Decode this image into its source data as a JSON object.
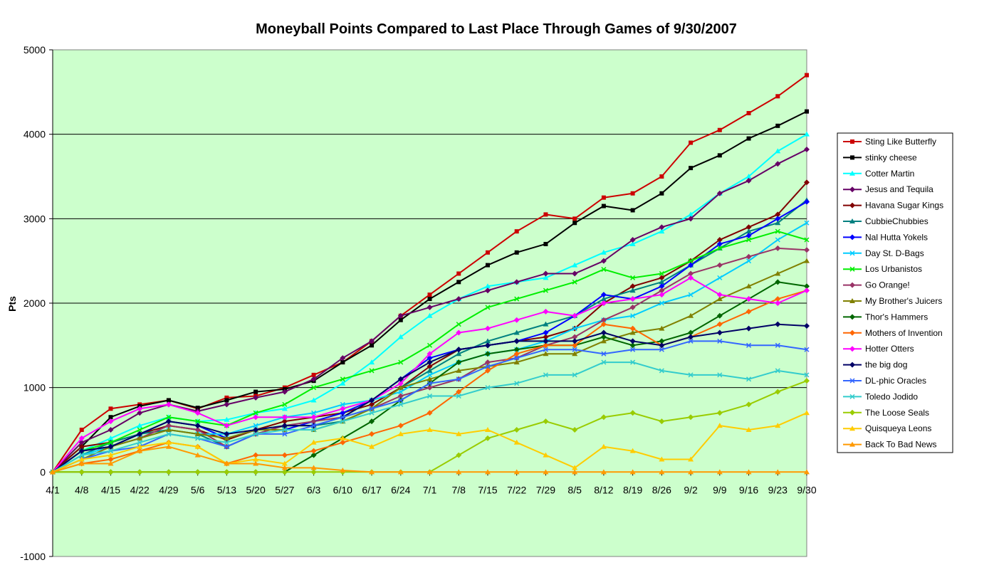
{
  "chart_data": {
    "type": "line",
    "title": "Moneyball Points Compared to Last Place Through Games of 9/30/2007",
    "xlabel": "",
    "ylabel": "Pts",
    "ylim": [
      -1000,
      5000
    ],
    "yticks": [
      -1000,
      0,
      1000,
      2000,
      3000,
      4000,
      5000
    ],
    "x_tick_labels": [
      "4/1",
      "4/8",
      "4/15",
      "4/22",
      "4/29",
      "5/6",
      "5/13",
      "5/20",
      "5/27",
      "6/3",
      "6/10",
      "6/17",
      "6/24",
      "7/1",
      "7/8",
      "7/15",
      "7/22",
      "7/29",
      "8/5",
      "8/12",
      "8/19",
      "8/26",
      "9/2",
      "9/9",
      "9/16",
      "9/23",
      "9/30"
    ],
    "plot_background": "#ccffcc",
    "grid": "horizontal",
    "legend_position": "right",
    "series": [
      {
        "name": "Sting Like Butterfly",
        "color": "#cc0000",
        "marker": "square",
        "values": [
          0,
          500,
          750,
          800,
          850,
          750,
          880,
          900,
          1000,
          1150,
          1300,
          1550,
          1850,
          2100,
          2350,
          2600,
          2850,
          3050,
          3000,
          3250,
          3300,
          3500,
          3900,
          4050,
          4250,
          4450,
          4700
        ]
      },
      {
        "name": "stinky cheese",
        "color": "#000000",
        "marker": "square",
        "values": [
          0,
          300,
          650,
          780,
          850,
          760,
          850,
          950,
          980,
          1080,
          1300,
          1500,
          1800,
          2050,
          2250,
          2450,
          2600,
          2700,
          2950,
          3150,
          3100,
          3300,
          3600,
          3750,
          3950,
          4100,
          4270
        ]
      },
      {
        "name": "Cotter Martin",
        "color": "#00ffff",
        "marker": "triangle",
        "values": [
          0,
          250,
          400,
          550,
          650,
          600,
          620,
          700,
          750,
          850,
          1050,
          1300,
          1600,
          1850,
          2050,
          2200,
          2250,
          2300,
          2450,
          2600,
          2700,
          2850,
          3050,
          3300,
          3500,
          3800,
          4000
        ]
      },
      {
        "name": "Jesus and Tequila",
        "color": "#660066",
        "marker": "diamond",
        "values": [
          0,
          350,
          500,
          700,
          800,
          720,
          800,
          880,
          950,
          1100,
          1350,
          1550,
          1850,
          1950,
          2050,
          2150,
          2250,
          2350,
          2350,
          2500,
          2750,
          2900,
          3000,
          3300,
          3450,
          3650,
          3820
        ]
      },
      {
        "name": "Havana Sugar Kings",
        "color": "#800000",
        "marker": "diamond",
        "values": [
          0,
          300,
          350,
          450,
          550,
          500,
          380,
          500,
          600,
          650,
          700,
          800,
          1000,
          1250,
          1450,
          1500,
          1550,
          1600,
          1700,
          2000,
          2200,
          2300,
          2500,
          2750,
          2900,
          3050,
          3430
        ]
      },
      {
        "name": "CubbieChubbies",
        "color": "#008080",
        "marker": "triangle",
        "values": [
          0,
          200,
          350,
          450,
          500,
          450,
          300,
          450,
          550,
          550,
          600,
          750,
          1000,
          1200,
          1400,
          1550,
          1650,
          1750,
          1850,
          2050,
          2150,
          2250,
          2450,
          2650,
          2850,
          2950,
          3220
        ]
      },
      {
        "name": "Nal Hutta Yokels",
        "color": "#0000ff",
        "marker": "diamond",
        "values": [
          0,
          250,
          300,
          450,
          600,
          550,
          400,
          500,
          500,
          600,
          700,
          850,
          1100,
          1350,
          1450,
          1500,
          1550,
          1650,
          1850,
          2100,
          2050,
          2200,
          2450,
          2700,
          2800,
          3000,
          3200
        ]
      },
      {
        "name": "Day St. D-Bags",
        "color": "#00ccff",
        "marker": "x",
        "values": [
          0,
          200,
          300,
          400,
          500,
          450,
          450,
          550,
          650,
          700,
          800,
          850,
          950,
          1150,
          1300,
          1400,
          1450,
          1550,
          1700,
          1800,
          1850,
          2000,
          2100,
          2300,
          2500,
          2750,
          2950
        ]
      },
      {
        "name": "Los Urbanistos",
        "color": "#00ee00",
        "marker": "x",
        "values": [
          0,
          250,
          350,
          500,
          650,
          600,
          550,
          700,
          800,
          1000,
          1100,
          1200,
          1300,
          1500,
          1750,
          1950,
          2050,
          2150,
          2250,
          2400,
          2300,
          2350,
          2500,
          2650,
          2750,
          2850,
          2750
        ]
      },
      {
        "name": "Go Orange!",
        "color": "#993366",
        "marker": "diamond",
        "values": [
          0,
          250,
          300,
          400,
          550,
          500,
          300,
          450,
          550,
          600,
          650,
          750,
          900,
          1000,
          1100,
          1300,
          1350,
          1500,
          1600,
          1800,
          1950,
          2150,
          2350,
          2450,
          2550,
          2650,
          2630
        ]
      },
      {
        "name": "My Brother's Juicers",
        "color": "#808000",
        "marker": "triangle",
        "values": [
          0,
          150,
          300,
          400,
          500,
          450,
          400,
          500,
          500,
          500,
          600,
          750,
          1000,
          1100,
          1200,
          1250,
          1300,
          1400,
          1400,
          1550,
          1650,
          1700,
          1850,
          2050,
          2200,
          2350,
          2500
        ]
      },
      {
        "name": "Thor's Hammers",
        "color": "#006600",
        "marker": "diamond",
        "values": [
          0,
          0,
          0,
          0,
          0,
          0,
          0,
          0,
          0,
          200,
          400,
          600,
          850,
          1050,
          1300,
          1400,
          1450,
          1500,
          1500,
          1600,
          1500,
          1550,
          1650,
          1850,
          2050,
          2250,
          2200
        ]
      },
      {
        "name": "Mothers of Invention",
        "color": "#ff6600",
        "marker": "diamond",
        "values": [
          0,
          100,
          150,
          250,
          350,
          300,
          100,
          200,
          200,
          250,
          350,
          450,
          550,
          700,
          950,
          1200,
          1400,
          1500,
          1500,
          1750,
          1700,
          1500,
          1600,
          1750,
          1900,
          2050,
          2150
        ]
      },
      {
        "name": "Hotter Otters",
        "color": "#ff00ff",
        "marker": "diamond",
        "values": [
          0,
          400,
          600,
          750,
          800,
          700,
          550,
          650,
          650,
          650,
          750,
          850,
          1050,
          1400,
          1650,
          1700,
          1800,
          1900,
          1850,
          2000,
          2050,
          2100,
          2300,
          2100,
          2050,
          2000,
          2150
        ]
      },
      {
        "name": "the big dog",
        "color": "#000066",
        "marker": "diamond",
        "values": [
          0,
          250,
          300,
          450,
          600,
          550,
          450,
          500,
          550,
          550,
          650,
          850,
          1100,
          1300,
          1450,
          1500,
          1550,
          1550,
          1550,
          1650,
          1550,
          1500,
          1600,
          1650,
          1700,
          1750,
          1730
        ]
      },
      {
        "name": "DL-phic Oracles",
        "color": "#3366ff",
        "marker": "x",
        "values": [
          0,
          150,
          250,
          300,
          450,
          400,
          300,
          450,
          450,
          550,
          650,
          750,
          850,
          1050,
          1100,
          1250,
          1350,
          1450,
          1450,
          1400,
          1450,
          1450,
          1550,
          1550,
          1500,
          1500,
          1450
        ]
      },
      {
        "name": "Toledo Jodido",
        "color": "#33cccc",
        "marker": "x",
        "values": [
          0,
          200,
          250,
          350,
          450,
          400,
          350,
          450,
          500,
          500,
          600,
          700,
          800,
          900,
          900,
          1000,
          1050,
          1150,
          1150,
          1300,
          1300,
          1200,
          1150,
          1150,
          1100,
          1200,
          1150
        ]
      },
      {
        "name": "The Loose Seals",
        "color": "#99cc00",
        "marker": "diamond",
        "values": [
          0,
          0,
          0,
          0,
          0,
          0,
          0,
          0,
          0,
          0,
          0,
          0,
          0,
          0,
          200,
          400,
          500,
          600,
          500,
          650,
          700,
          600,
          650,
          700,
          800,
          950,
          1080
        ]
      },
      {
        "name": "Quisqueya Leons",
        "color": "#ffcc00",
        "marker": "triangle",
        "values": [
          0,
          150,
          200,
          300,
          350,
          300,
          100,
          150,
          100,
          350,
          400,
          300,
          450,
          500,
          450,
          500,
          350,
          200,
          50,
          300,
          250,
          150,
          150,
          550,
          500,
          550,
          700
        ]
      },
      {
        "name": "Back To Bad News",
        "color": "#ff9900",
        "marker": "triangle",
        "values": [
          0,
          100,
          100,
          250,
          300,
          200,
          100,
          100,
          50,
          50,
          20,
          0,
          0,
          0,
          0,
          0,
          0,
          0,
          0,
          0,
          0,
          0,
          0,
          0,
          0,
          0,
          0
        ]
      }
    ]
  }
}
